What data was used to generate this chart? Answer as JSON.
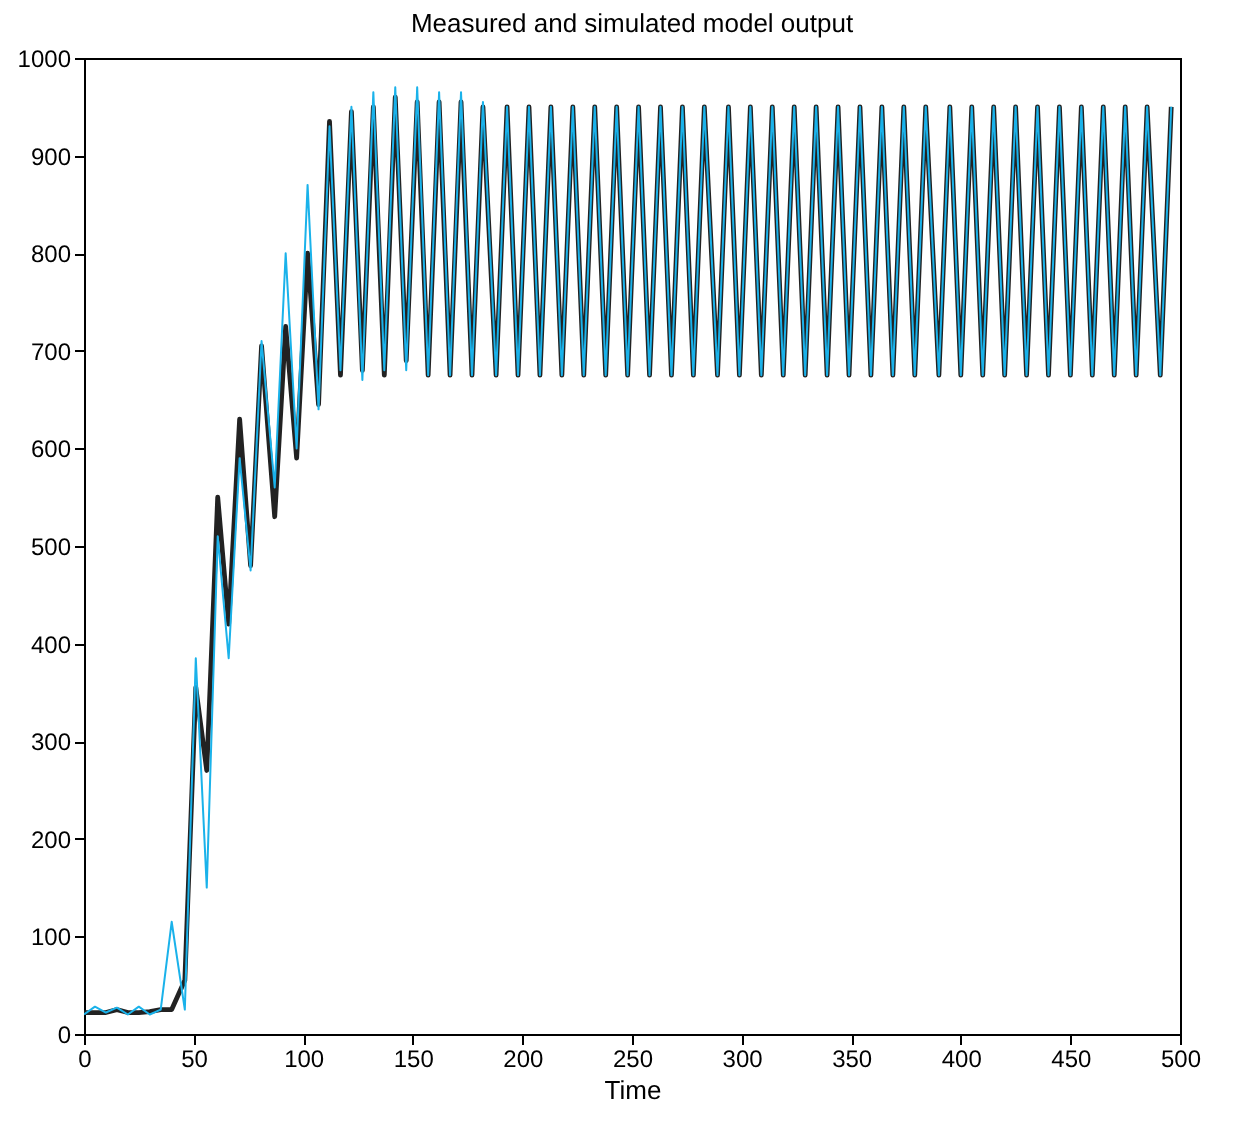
{
  "chart_data": {
    "type": "line",
    "title": "Measured and simulated model output",
    "xlabel": "Time",
    "x": [
      0,
      5,
      10,
      15,
      20,
      25,
      30,
      35,
      40,
      46,
      51,
      56,
      61,
      66,
      71,
      76,
      81,
      87,
      92,
      97,
      102,
      107,
      112,
      117,
      122,
      127,
      132,
      137,
      142,
      147,
      152,
      157,
      162,
      167,
      172,
      177,
      182,
      188,
      193,
      198,
      203,
      208,
      213,
      218,
      223,
      228,
      233,
      238,
      243,
      248,
      253,
      258,
      263,
      268,
      273,
      278,
      283,
      289,
      294,
      299,
      304,
      309,
      314,
      319,
      324,
      329,
      334,
      339,
      344,
      349,
      354,
      359,
      364,
      369,
      374,
      379,
      384,
      390,
      395,
      400,
      405,
      410,
      415,
      420,
      425,
      430,
      435,
      440,
      445,
      450,
      455,
      460,
      465,
      470,
      475,
      480,
      485,
      491,
      496
    ],
    "series": [
      {
        "color": "#222222",
        "values": [
          22,
          22,
          22,
          25,
          22,
          22,
          23,
          25,
          25,
          55,
          355,
          270,
          550,
          420,
          630,
          480,
          705,
          530,
          725,
          590,
          800,
          645,
          935,
          675,
          945,
          680,
          950,
          675,
          960,
          690,
          955,
          675,
          955,
          675,
          955,
          675,
          950,
          675,
          950,
          675,
          950,
          675,
          950,
          675,
          950,
          675,
          950,
          675,
          950,
          675,
          950,
          675,
          950,
          675,
          950,
          675,
          950,
          675,
          950,
          675,
          950,
          675,
          950,
          675,
          950,
          675,
          950,
          675,
          950,
          675,
          950,
          675,
          950,
          675,
          950,
          675,
          950,
          675,
          950,
          675,
          950,
          675,
          950,
          675,
          950,
          675,
          950,
          675,
          950,
          675,
          950,
          675,
          950,
          675,
          950,
          675,
          950,
          675,
          950
        ]
      },
      {
        "color": "#1ab2ea",
        "values": [
          20,
          28,
          22,
          27,
          20,
          28,
          20,
          25,
          115,
          25,
          385,
          150,
          510,
          385,
          590,
          475,
          710,
          560,
          800,
          600,
          870,
          640,
          930,
          680,
          950,
          670,
          965,
          680,
          970,
          680,
          970,
          675,
          965,
          675,
          965,
          675,
          955,
          675,
          950,
          675,
          950,
          675,
          950,
          675,
          950,
          675,
          950,
          675,
          950,
          675,
          950,
          675,
          950,
          675,
          950,
          675,
          950,
          675,
          950,
          675,
          950,
          675,
          950,
          675,
          950,
          675,
          950,
          675,
          950,
          675,
          950,
          675,
          950,
          675,
          950,
          675,
          950,
          675,
          950,
          675,
          950,
          675,
          950,
          675,
          950,
          675,
          950,
          675,
          950,
          675,
          950,
          675,
          950,
          675,
          950,
          675,
          950,
          675,
          950
        ]
      }
    ],
    "xlim": [
      0,
      500
    ],
    "xticks": [
      0,
      50,
      100,
      150,
      200,
      250,
      300,
      350,
      400,
      450,
      500
    ],
    "ylim": [
      0,
      1000
    ],
    "yticks": [
      0,
      100,
      200,
      300,
      400,
      500,
      600,
      700,
      800,
      900,
      1000
    ]
  }
}
